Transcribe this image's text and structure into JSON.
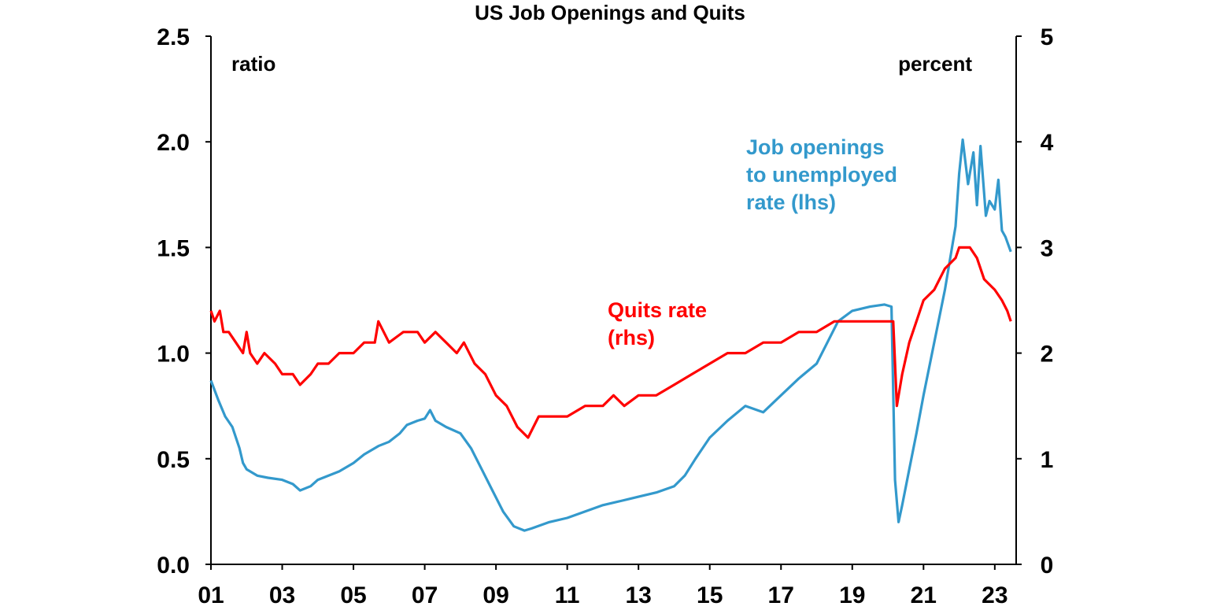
{
  "chart_data": {
    "type": "line",
    "title": "US Job Openings and Quits",
    "left_axis": {
      "unit_label": "ratio",
      "ylim": [
        0,
        2.5
      ],
      "ticks": [
        "0.0",
        "0.5",
        "1.0",
        "1.5",
        "2.0",
        "2.5"
      ],
      "tick_values": [
        0,
        0.5,
        1.0,
        1.5,
        2.0,
        2.5
      ]
    },
    "right_axis": {
      "unit_label": "percent",
      "ylim": [
        0,
        5
      ],
      "ticks": [
        "0",
        "1",
        "2",
        "3",
        "4",
        "5"
      ],
      "tick_values": [
        0,
        1,
        2,
        3,
        4,
        5
      ]
    },
    "x_axis": {
      "range": [
        2001.0,
        2023.6
      ],
      "ticks": [
        "01",
        "03",
        "05",
        "07",
        "09",
        "11",
        "13",
        "15",
        "17",
        "19",
        "21",
        "23"
      ],
      "tick_values": [
        2001,
        2003,
        2005,
        2007,
        2009,
        2011,
        2013,
        2015,
        2017,
        2019,
        2021,
        2023
      ]
    },
    "grid": false,
    "series": [
      {
        "name": "Job openings to unemployed rate (lhs)",
        "label_lines": [
          "Job openings",
          "to unemployed",
          "rate (lhs)"
        ],
        "axis": "left",
        "color": "#3399cc",
        "x": [
          2001.0,
          2001.2,
          2001.4,
          2001.6,
          2001.8,
          2001.9,
          2002.0,
          2002.3,
          2002.6,
          2003.0,
          2003.3,
          2003.5,
          2003.8,
          2004.0,
          2004.3,
          2004.6,
          2005.0,
          2005.3,
          2005.7,
          2006.0,
          2006.3,
          2006.5,
          2006.8,
          2007.0,
          2007.15,
          2007.3,
          2007.6,
          2008.0,
          2008.3,
          2008.6,
          2008.9,
          2009.2,
          2009.5,
          2009.8,
          2010.0,
          2010.5,
          2011.0,
          2011.5,
          2012.0,
          2012.5,
          2013.0,
          2013.5,
          2014.0,
          2014.3,
          2014.6,
          2015.0,
          2015.5,
          2016.0,
          2016.5,
          2017.0,
          2017.5,
          2018.0,
          2018.3,
          2018.6,
          2019.0,
          2019.5,
          2019.9,
          2020.1,
          2020.2,
          2020.3,
          2020.4,
          2020.6,
          2020.8,
          2021.0,
          2021.3,
          2021.6,
          2021.9,
          2022.0,
          2022.1,
          2022.25,
          2022.4,
          2022.5,
          2022.6,
          2022.75,
          2022.85,
          2023.0,
          2023.1,
          2023.2,
          2023.3,
          2023.45
        ],
        "values": [
          0.87,
          0.78,
          0.7,
          0.65,
          0.55,
          0.48,
          0.45,
          0.42,
          0.41,
          0.4,
          0.38,
          0.35,
          0.37,
          0.4,
          0.42,
          0.44,
          0.48,
          0.52,
          0.56,
          0.58,
          0.62,
          0.66,
          0.68,
          0.69,
          0.73,
          0.68,
          0.65,
          0.62,
          0.55,
          0.45,
          0.35,
          0.25,
          0.18,
          0.16,
          0.17,
          0.2,
          0.22,
          0.25,
          0.28,
          0.3,
          0.32,
          0.34,
          0.37,
          0.42,
          0.5,
          0.6,
          0.68,
          0.75,
          0.72,
          0.8,
          0.88,
          0.95,
          1.05,
          1.15,
          1.2,
          1.22,
          1.23,
          1.22,
          0.4,
          0.2,
          0.28,
          0.45,
          0.62,
          0.8,
          1.05,
          1.3,
          1.6,
          1.85,
          2.01,
          1.8,
          1.95,
          1.7,
          1.98,
          1.65,
          1.72,
          1.68,
          1.82,
          1.58,
          1.55,
          1.48
        ]
      },
      {
        "name": "Quits rate (rhs)",
        "label_lines": [
          "Quits rate",
          "(rhs)"
        ],
        "axis": "right",
        "color": "#ff0000",
        "x": [
          2001.0,
          2001.1,
          2001.25,
          2001.35,
          2001.5,
          2001.7,
          2001.9,
          2002.0,
          2002.1,
          2002.3,
          2002.5,
          2002.8,
          2003.0,
          2003.3,
          2003.5,
          2003.8,
          2004.0,
          2004.3,
          2004.6,
          2005.0,
          2005.3,
          2005.6,
          2005.7,
          2006.0,
          2006.4,
          2006.8,
          2007.0,
          2007.3,
          2007.6,
          2007.9,
          2008.1,
          2008.4,
          2008.7,
          2009.0,
          2009.3,
          2009.6,
          2009.9,
          2010.2,
          2010.5,
          2011.0,
          2011.5,
          2012.0,
          2012.3,
          2012.6,
          2013.0,
          2013.5,
          2014.0,
          2014.5,
          2015.0,
          2015.5,
          2016.0,
          2016.5,
          2017.0,
          2017.5,
          2018.0,
          2018.5,
          2019.0,
          2019.5,
          2020.0,
          2020.15,
          2020.25,
          2020.4,
          2020.6,
          2020.8,
          2021.0,
          2021.3,
          2021.6,
          2021.9,
          2022.0,
          2022.3,
          2022.5,
          2022.7,
          2023.0,
          2023.2,
          2023.35,
          2023.45
        ],
        "values": [
          2.4,
          2.3,
          2.4,
          2.2,
          2.2,
          2.1,
          2.0,
          2.2,
          2.0,
          1.9,
          2.0,
          1.9,
          1.8,
          1.8,
          1.7,
          1.8,
          1.9,
          1.9,
          2.0,
          2.0,
          2.1,
          2.1,
          2.3,
          2.1,
          2.2,
          2.2,
          2.1,
          2.2,
          2.1,
          2.0,
          2.1,
          1.9,
          1.8,
          1.6,
          1.5,
          1.3,
          1.2,
          1.4,
          1.4,
          1.4,
          1.5,
          1.5,
          1.6,
          1.5,
          1.6,
          1.6,
          1.7,
          1.8,
          1.9,
          2.0,
          2.0,
          2.1,
          2.1,
          2.2,
          2.2,
          2.3,
          2.3,
          2.3,
          2.3,
          2.3,
          1.5,
          1.8,
          2.1,
          2.3,
          2.5,
          2.6,
          2.8,
          2.9,
          3.0,
          3.0,
          2.9,
          2.7,
          2.6,
          2.5,
          2.4,
          2.3
        ]
      }
    ]
  }
}
